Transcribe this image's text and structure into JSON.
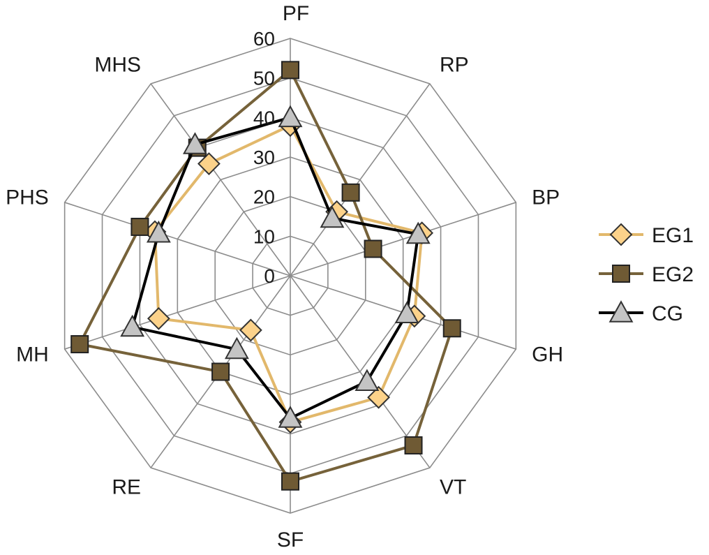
{
  "chart_data": {
    "type": "radar",
    "categories": [
      "PF",
      "RP",
      "BP",
      "GH",
      "VT",
      "SF",
      "RE",
      "MH",
      "PHS",
      "MHS"
    ],
    "rlim": [
      0,
      60
    ],
    "ticks": [
      0,
      10,
      20,
      30,
      40,
      50,
      60
    ],
    "grid": true,
    "legend_position": "right",
    "series": [
      {
        "name": "EG1",
        "values": [
          38,
          20,
          35,
          33,
          38,
          37,
          17,
          35,
          36,
          35
        ],
        "line_color": "#e2b86b",
        "marker": "diamond",
        "marker_fill": "#fcd28a",
        "marker_stroke": "#333333"
      },
      {
        "name": "EG2",
        "values": [
          52,
          26,
          22,
          43,
          53,
          52,
          30,
          56,
          40,
          40
        ],
        "line_color": "#76623a",
        "marker": "square",
        "marker_fill": "#6f5a34",
        "marker_stroke": "#222222"
      },
      {
        "name": "CG",
        "values": [
          40,
          18,
          34,
          31,
          33,
          36,
          23,
          42,
          35,
          41
        ],
        "line_color": "#000000",
        "marker": "triangle",
        "marker_fill": "#c4c4c4",
        "marker_stroke": "#333333"
      }
    ]
  }
}
